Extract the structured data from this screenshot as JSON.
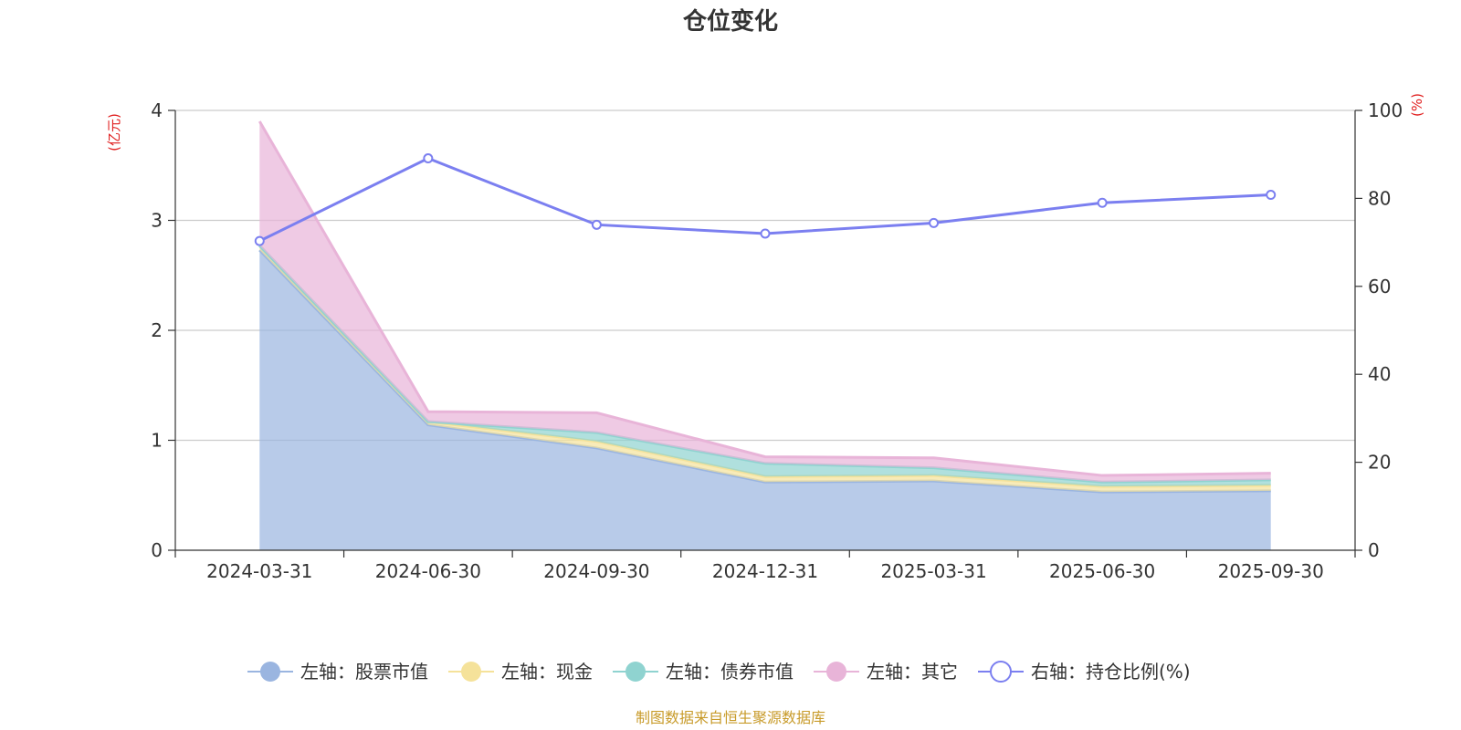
{
  "chart_data": {
    "type": "area",
    "title": "仓位变化",
    "categories": [
      "2024-03-31",
      "2024-06-30",
      "2024-09-30",
      "2024-12-31",
      "2025-03-31",
      "2025-06-30",
      "2025-09-30"
    ],
    "left_axis": {
      "unit": "(亿元)",
      "ylim": [
        0,
        4
      ],
      "ticks": [
        0,
        1,
        2,
        3,
        4
      ]
    },
    "right_axis": {
      "unit": "(%)",
      "ylim": [
        0,
        100
      ],
      "ticks": [
        0,
        20,
        40,
        60,
        80,
        100
      ]
    },
    "series": [
      {
        "name": "左轴：股票市值",
        "axis": "left",
        "stack": true,
        "color": "#9ab5e0",
        "values": [
          2.73,
          1.14,
          0.93,
          0.62,
          0.63,
          0.53,
          0.54
        ]
      },
      {
        "name": "左轴：现金",
        "axis": "left",
        "stack": true,
        "color": "#f5e29a",
        "values": [
          0.04,
          0.03,
          0.06,
          0.05,
          0.05,
          0.05,
          0.05
        ]
      },
      {
        "name": "左轴：债券市值",
        "axis": "left",
        "stack": true,
        "color": "#8fd3d0",
        "values": [
          0,
          0,
          0.08,
          0.12,
          0.07,
          0.04,
          0.05
        ]
      },
      {
        "name": "左轴：其它",
        "axis": "left",
        "stack": true,
        "color": "#e8b4d8",
        "values": [
          1.13,
          0.09,
          0.18,
          0.06,
          0.09,
          0.06,
          0.06
        ]
      },
      {
        "name": "右轴：持仓比例(%)",
        "axis": "right",
        "stack": false,
        "color": "#7b7ff0",
        "values": [
          70.3,
          89.1,
          74.0,
          72.0,
          74.4,
          79.0,
          80.8
        ]
      }
    ],
    "legend_position": "bottom",
    "grid": true
  },
  "source_note": "制图数据来自恒生聚源数据库"
}
